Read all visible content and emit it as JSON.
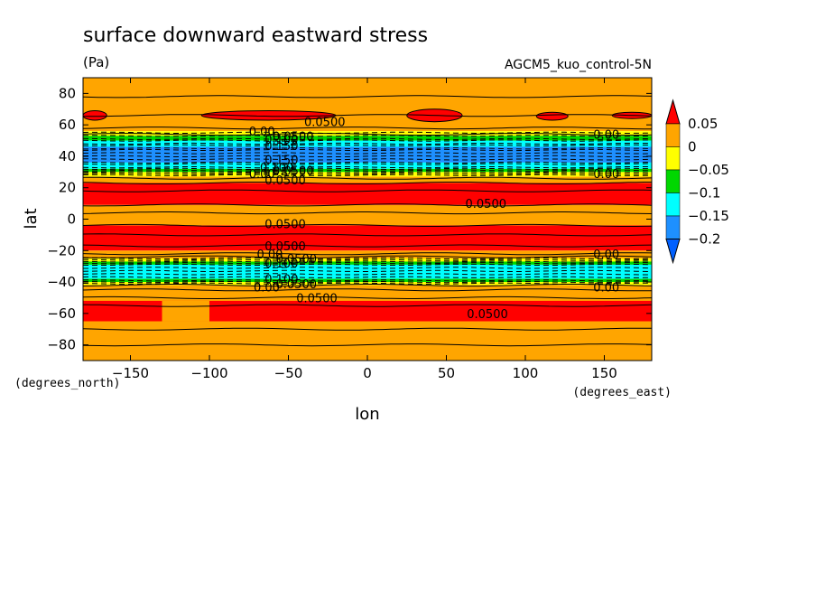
{
  "figure": {
    "title": "surface downward eastward stress",
    "units": "(Pa)",
    "experiment": "AGCM5_kuo_control-5N",
    "ylabel_units": "(degrees_north)",
    "xlabel_units": "(degrees_east)"
  },
  "chart_data": {
    "type": "heatmap",
    "title": "surface downward eastward stress",
    "xlabel": "lon",
    "ylabel": "lat",
    "xlim": [
      -180,
      180
    ],
    "ylim": [
      -90,
      90
    ],
    "x_ticks": [
      -150,
      -100,
      -50,
      0,
      50,
      100,
      150
    ],
    "y_ticks": [
      -80,
      -60,
      -40,
      -20,
      0,
      20,
      40,
      60,
      80
    ],
    "x_tick_labels": [
      "−150",
      "−100",
      "−50",
      "0",
      "50",
      "100",
      "150"
    ],
    "y_tick_labels": [
      "−80",
      "−60",
      "−40",
      "−20",
      "0",
      "20",
      "40",
      "60",
      "80"
    ],
    "colorbar": {
      "levels": [
        0.05,
        0,
        -0.05,
        -0.1,
        -0.15,
        -0.2
      ],
      "labels": [
        "0.05",
        "0",
        "−0.05",
        "−0.1",
        "−0.15",
        "−0.2"
      ],
      "colors": [
        "#ff0000",
        "#ffa500",
        "#ffff00",
        "#00d700",
        "#00ffff",
        "#1e90ff",
        "#0060ff"
      ]
    },
    "bands": [
      {
        "lat": [
          65,
          90
        ],
        "value": 0.03,
        "color": "#ffa500"
      },
      {
        "lat": [
          56,
          65
        ],
        "value": 0.03,
        "color": "#ffa500"
      },
      {
        "lat": [
          53,
          56
        ],
        "value": -0.02,
        "color": "#ffff00"
      },
      {
        "lat": [
          50,
          53
        ],
        "value": -0.07,
        "color": "#00d700"
      },
      {
        "lat": [
          46,
          50
        ],
        "value": -0.12,
        "color": "#00ffff"
      },
      {
        "lat": [
          36,
          46
        ],
        "value": -0.17,
        "color": "#1e90ff"
      },
      {
        "lat": [
          32,
          36
        ],
        "value": -0.12,
        "color": "#00ffff"
      },
      {
        "lat": [
          30,
          32
        ],
        "value": -0.07,
        "color": "#00d700"
      },
      {
        "lat": [
          27,
          30
        ],
        "value": -0.02,
        "color": "#ffff00"
      },
      {
        "lat": [
          23,
          27
        ],
        "value": 0.03,
        "color": "#ffa500"
      },
      {
        "lat": [
          9,
          23
        ],
        "value": 0.07,
        "color": "#ff0000"
      },
      {
        "lat": [
          -4,
          9
        ],
        "value": 0.03,
        "color": "#ffa500"
      },
      {
        "lat": [
          -20,
          -4
        ],
        "value": 0.07,
        "color": "#ff0000"
      },
      {
        "lat": [
          -25,
          -20
        ],
        "value": 0.03,
        "color": "#ffa500"
      },
      {
        "lat": [
          -27,
          -25
        ],
        "value": -0.02,
        "color": "#ffff00"
      },
      {
        "lat": [
          -29,
          -27
        ],
        "value": -0.07,
        "color": "#00d700"
      },
      {
        "lat": [
          -38,
          -29
        ],
        "value": -0.12,
        "color": "#00ffff"
      },
      {
        "lat": [
          -40,
          -38
        ],
        "value": -0.07,
        "color": "#00d700"
      },
      {
        "lat": [
          -42,
          -40
        ],
        "value": -0.02,
        "color": "#ffff00"
      },
      {
        "lat": [
          -55,
          -42
        ],
        "value": 0.03,
        "color": "#ffa500"
      },
      {
        "lat": [
          -90,
          -55
        ],
        "value": 0.03,
        "color": "#ffa500"
      }
    ],
    "patches": [
      {
        "type": "rect",
        "lon": [
          -180,
          180
        ],
        "lat": [
          -65,
          -52
        ],
        "value": 0.06,
        "color": "#ff0000"
      },
      {
        "type": "rect",
        "lon": [
          -130,
          -100
        ],
        "lat": [
          -65,
          -52
        ],
        "value": 0.03,
        "color": "#ffa500"
      },
      {
        "type": "ellipse",
        "lon": [
          -180,
          -165
        ],
        "lat": [
          63,
          69
        ],
        "value": 0.06,
        "color": "#ff0000"
      },
      {
        "type": "ellipse",
        "lon": [
          -105,
          -20
        ],
        "lat": [
          63,
          69
        ],
        "value": 0.06,
        "color": "#ff0000"
      },
      {
        "type": "ellipse",
        "lon": [
          25,
          60
        ],
        "lat": [
          62,
          70
        ],
        "value": 0.06,
        "color": "#ff0000"
      },
      {
        "type": "ellipse",
        "lon": [
          107,
          127
        ],
        "lat": [
          63,
          68
        ],
        "value": 0.06,
        "color": "#ff0000"
      },
      {
        "type": "ellipse",
        "lon": [
          155,
          180
        ],
        "lat": [
          64,
          68
        ],
        "value": 0.06,
        "color": "#ff0000"
      }
    ],
    "solid_contours_lat": [
      78,
      66,
      58,
      54,
      26,
      23,
      18,
      9,
      4,
      -4,
      -10,
      -17,
      -22,
      -24,
      -42,
      -45,
      -50,
      -55,
      -70,
      -80
    ],
    "dashed_contours_lat": [
      55,
      53,
      51,
      50,
      48,
      47,
      45,
      44,
      42,
      40,
      38,
      36,
      35,
      33,
      32,
      31,
      30,
      29,
      28,
      -25,
      -26,
      -27,
      -28,
      -29,
      -31,
      -33,
      -35,
      -37,
      -39,
      -40,
      -41
    ],
    "contour_labels": [
      {
        "text": "0.0500",
        "lon": -40,
        "lat": 62
      },
      {
        "text": "0.00",
        "lon": -75,
        "lat": 56
      },
      {
        "text": "0.0500",
        "lon": -60,
        "lat": 53
      },
      {
        "text": "0.100",
        "lon": -65,
        "lat": 51
      },
      {
        "text": "0.150",
        "lon": -65,
        "lat": 47
      },
      {
        "text": "0.150",
        "lon": -65,
        "lat": 38
      },
      {
        "text": "0.100",
        "lon": -68,
        "lat": 33
      },
      {
        "text": "0.0500",
        "lon": -60,
        "lat": 31
      },
      {
        "text": "0.00",
        "lon": -75,
        "lat": 29
      },
      {
        "text": "0.0500",
        "lon": -65,
        "lat": 25
      },
      {
        "text": "0.00",
        "lon": 143,
        "lat": 54
      },
      {
        "text": "0.00",
        "lon": 143,
        "lat": 29
      },
      {
        "text": "0.0500",
        "lon": 62,
        "lat": 10
      },
      {
        "text": "0.0500",
        "lon": -65,
        "lat": -3
      },
      {
        "text": "0.0500",
        "lon": -65,
        "lat": -17
      },
      {
        "text": "0.00",
        "lon": -70,
        "lat": -22
      },
      {
        "text": "0.0500",
        "lon": -58,
        "lat": -25
      },
      {
        "text": "0.100",
        "lon": -65,
        "lat": -28
      },
      {
        "text": "0.100",
        "lon": -65,
        "lat": -38
      },
      {
        "text": "0.0500",
        "lon": -58,
        "lat": -41
      },
      {
        "text": "0.00",
        "lon": -72,
        "lat": -43
      },
      {
        "text": "0.0500",
        "lon": -45,
        "lat": -50
      },
      {
        "text": "0.00",
        "lon": 143,
        "lat": -22
      },
      {
        "text": "0.00",
        "lon": 143,
        "lat": -43
      },
      {
        "text": "0.0500",
        "lon": 63,
        "lat": -60
      }
    ]
  }
}
